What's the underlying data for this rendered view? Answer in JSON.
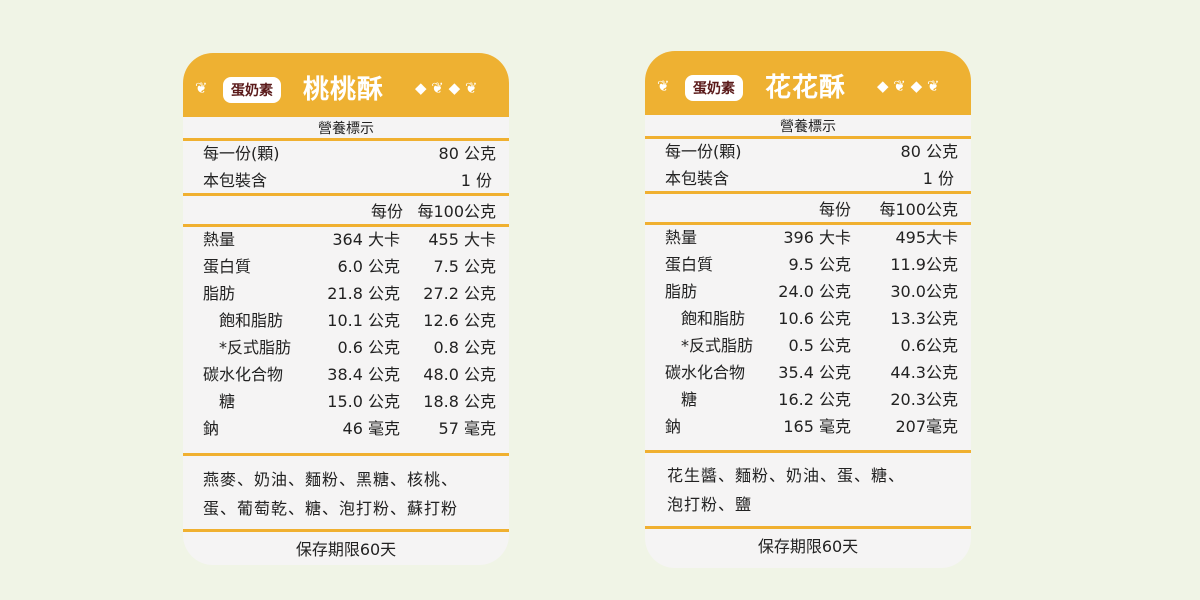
{
  "colors": {
    "background": "#f0f4e6",
    "header": "#eeb132",
    "divider": "#f0b030",
    "badge_text": "#5a1a1a"
  },
  "cards": [
    {
      "badge": "蛋奶素",
      "title": "桃桃酥",
      "section": "營養標示",
      "serving_label": "每一份(顆)",
      "serving_value": "80 公克",
      "pack_label": "本包裝含",
      "pack_value": "1 份",
      "col1": "每份",
      "col2": "每100公克",
      "rows": [
        [
          "熱量",
          "364 大卡",
          "455 大卡"
        ],
        [
          "蛋白質",
          "6.0 公克",
          "7.5 公克"
        ],
        [
          "脂肪",
          "21.8 公克",
          "27.2 公克"
        ],
        [
          "　飽和脂肪",
          "10.1 公克",
          "12.6 公克"
        ],
        [
          "　*反式脂肪",
          "0.6 公克",
          "0.8 公克"
        ],
        [
          "碳水化合物",
          "38.4 公克",
          "48.0 公克"
        ],
        [
          "　糖",
          "15.0 公克",
          "18.8 公克"
        ],
        [
          "鈉",
          "46 毫克",
          "57 毫克"
        ]
      ],
      "ingredients": [
        "燕麥、奶油、麵粉、黑糖、核桃、",
        "蛋、葡萄乾、糖、泡打粉、蘇打粉"
      ],
      "shelf_life": "保存期限60天"
    },
    {
      "badge": "蛋奶素",
      "title": "花花酥",
      "section": "營養標示",
      "serving_label": "每一份(顆)",
      "serving_value": "80 公克",
      "pack_label": "本包裝含",
      "pack_value": "1 份",
      "col1": "每份",
      "col2": "每100公克",
      "rows": [
        [
          "熱量",
          "396 大卡",
          "495大卡"
        ],
        [
          "蛋白質",
          "9.5 公克",
          "11.9公克"
        ],
        [
          "脂肪",
          "24.0 公克",
          "30.0公克"
        ],
        [
          "　飽和脂肪",
          "10.6 公克",
          "13.3公克"
        ],
        [
          "　*反式脂肪",
          "0.5 公克",
          "0.6公克"
        ],
        [
          "碳水化合物",
          "35.4 公克",
          "44.3公克"
        ],
        [
          "　糖",
          "16.2 公克",
          "20.3公克"
        ],
        [
          "鈉",
          "165 毫克",
          "207毫克"
        ]
      ],
      "ingredients": [
        "花生醬、麵粉、奶油、蛋、糖、",
        "泡打粉、鹽"
      ],
      "shelf_life": "保存期限60天"
    }
  ]
}
